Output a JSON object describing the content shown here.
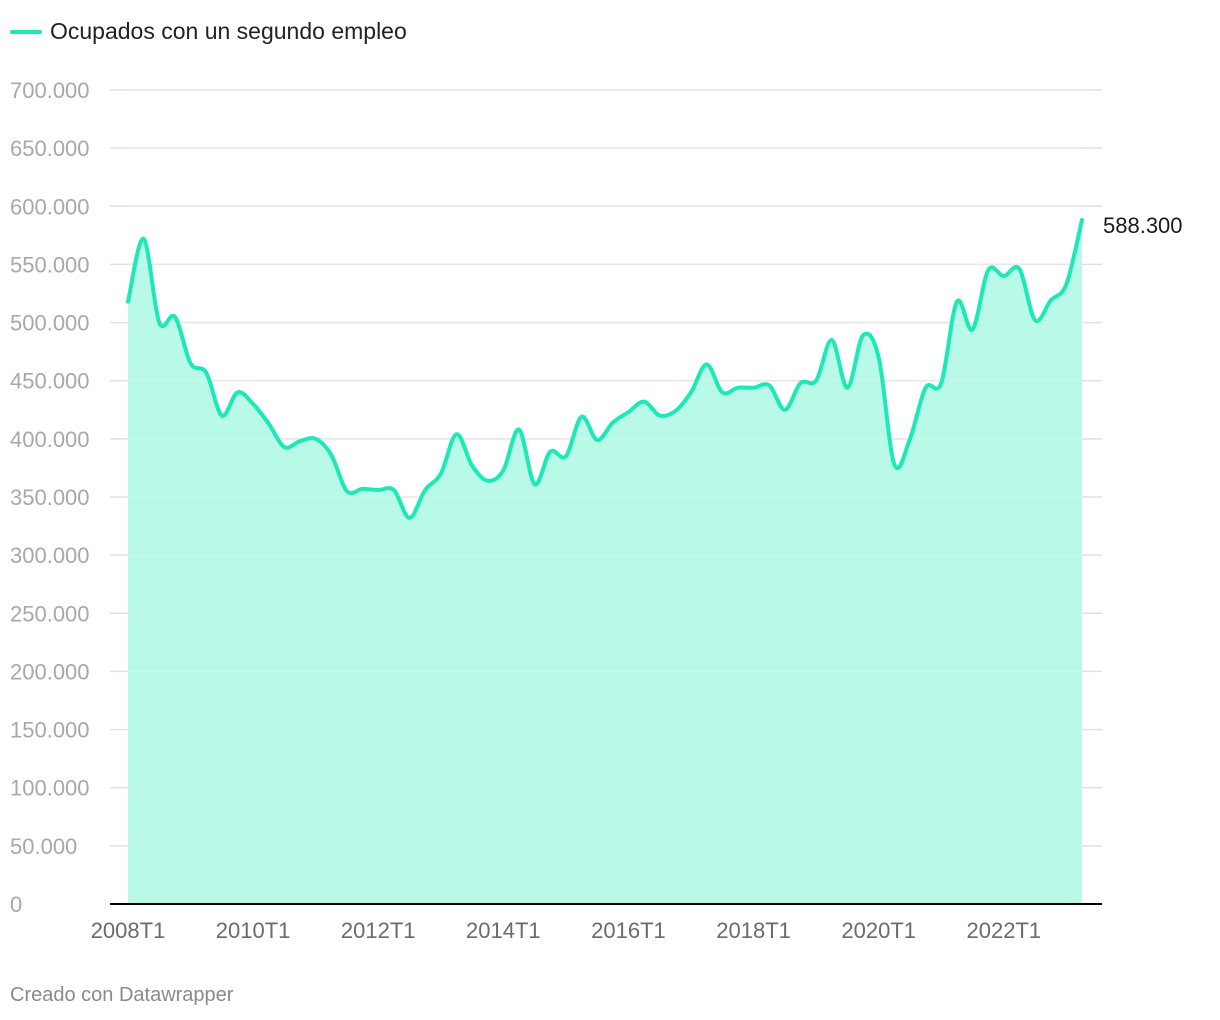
{
  "footer": "Creado con Datawrapper",
  "colors": {
    "line": "#1de9b6",
    "area": "#b8f9e7",
    "grid": "#e0e0e0",
    "axis": "#000000"
  },
  "chart_data": {
    "type": "area",
    "series": [
      {
        "name": "Ocupados con un segundo empleo",
        "values": [
          518000,
          572000,
          500000,
          505000,
          465000,
          457000,
          420000,
          440000,
          430000,
          413000,
          393000,
          398000,
          400000,
          386000,
          355000,
          357000,
          356000,
          356000,
          332000,
          356000,
          370000,
          404000,
          377000,
          364000,
          373000,
          408000,
          361000,
          389000,
          385000,
          419000,
          399000,
          414000,
          423000,
          432000,
          420000,
          424000,
          440000,
          464000,
          440000,
          444000,
          444000,
          446000,
          425000,
          448000,
          450000,
          485000,
          444000,
          489000,
          470000,
          378000,
          400000,
          444000,
          448000,
          518000,
          494000,
          545000,
          540000,
          546000,
          502000,
          519000,
          533000,
          588300
        ]
      }
    ],
    "x_ticks": [
      "2008T1",
      "2010T1",
      "2012T1",
      "2014T1",
      "2016T1",
      "2018T1",
      "2020T1",
      "2022T1"
    ],
    "y_ticks": [
      "0",
      "50.000",
      "100.000",
      "150.000",
      "200.000",
      "250.000",
      "300.000",
      "350.000",
      "400.000",
      "450.000",
      "500.000",
      "550.000",
      "600.000",
      "650.000",
      "700.000"
    ],
    "ylim": [
      0,
      700000
    ],
    "end_label": "588.300",
    "grid": true,
    "legend_position": "top-left"
  }
}
